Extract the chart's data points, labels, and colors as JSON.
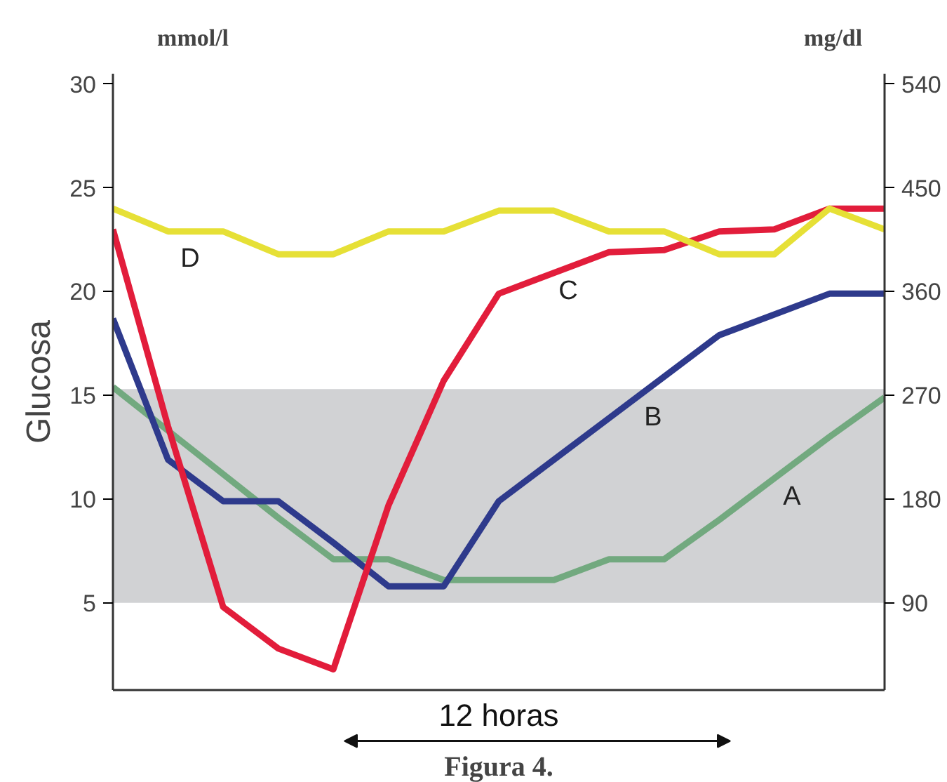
{
  "chart_data": {
    "type": "line",
    "title": "Figura 4.",
    "xlabel": "12 horas",
    "ylabel": "Glucosa",
    "y2label": "mg/dl",
    "annotations": [
      "mmol/l"
    ],
    "categories": [
      null,
      null,
      null,
      null,
      null,
      null,
      null,
      null,
      null,
      null,
      null,
      null,
      null,
      null,
      null
    ],
    "series": [
      {
        "name": "A",
        "color": "#72a97f",
        "values": [
          15.4,
          13.3,
          11.2,
          9.1,
          7.1,
          7.1,
          6.1,
          6.1,
          6.1,
          7.1,
          7.1,
          9.0,
          11.0,
          13.0,
          14.9
        ]
      },
      {
        "name": "B",
        "color": "#2e3a8c",
        "values": [
          18.7,
          11.9,
          9.9,
          9.9,
          7.9,
          5.8,
          5.8,
          9.9,
          11.9,
          13.9,
          15.9,
          17.9,
          18.9,
          19.9,
          19.9
        ]
      },
      {
        "name": "C",
        "color": "#e21d3b",
        "values": [
          23.0,
          13.5,
          4.8,
          2.8,
          1.8,
          9.7,
          15.7,
          19.9,
          20.9,
          21.9,
          22.0,
          22.9,
          23.0,
          24.0,
          24.0
        ]
      },
      {
        "name": "D",
        "color": "#e6e036",
        "values": [
          24.0,
          22.9,
          22.9,
          21.8,
          21.8,
          22.9,
          22.9,
          23.9,
          23.9,
          22.9,
          22.9,
          21.8,
          21.8,
          24.0,
          23.0
        ]
      }
    ],
    "ylim": [
      0.8,
      30.5
    ],
    "yticks": [
      5,
      10,
      15,
      20,
      25,
      30
    ],
    "y2lim": [
      14.4,
      549
    ],
    "y2ticks": [
      90,
      180,
      270,
      360,
      450,
      540
    ],
    "bands": [
      {
        "axis": "y",
        "from": 5,
        "to": 15.3,
        "color": "#d1d2d4"
      }
    ],
    "grid": false,
    "legend": false,
    "tick_labels": "y"
  }
}
